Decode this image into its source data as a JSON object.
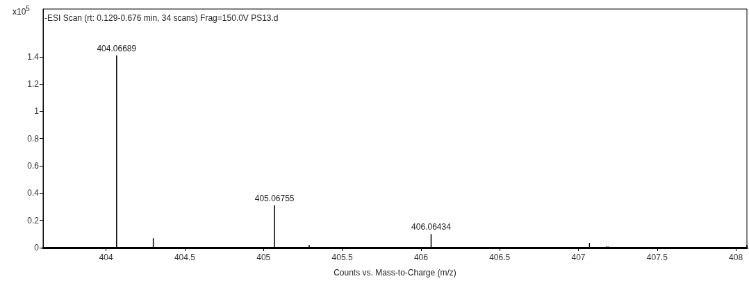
{
  "chart_data": {
    "type": "bar",
    "title": "-ESI Scan (rt: 0.129-0.676 min, 34 scans) Frag=150.0V PS13.d",
    "xlabel": "Counts vs. Mass-to-Charge (m/z)",
    "ylabel": "x10$^{5}$",
    "x": [
      404.06689,
      404.3,
      405.07,
      405.18,
      405.2,
      405.22,
      405.29,
      406.06434,
      406.2,
      406.24,
      406.28,
      406.3,
      407.07,
      407.14,
      407.18,
      407.19,
      407.3,
      408.07
    ],
    "values": [
      1.41,
      0.07,
      0.31,
      0.005,
      0.005,
      0.005,
      0.02,
      0.1,
      0.005,
      0.005,
      0.005,
      0.005,
      0.035,
      0.005,
      0.01,
      0.008,
      0.005,
      0.02
    ],
    "color": "#000000",
    "annotations": [
      {
        "text": "404.06689",
        "x": 404.06689,
        "y": 1.41
      },
      {
        "text": "405.06755",
        "x": 405.07,
        "y": 0.31
      },
      {
        "text": "406.06434",
        "x": 406.06434,
        "y": 0.1
      }
    ],
    "xlim": [
      403.6,
      408.07
    ],
    "xticks": [
      404,
      404.5,
      405,
      405.5,
      406,
      406.5,
      407,
      407.5,
      408
    ],
    "ylim": [
      0,
      1.75
    ],
    "yticks": [
      0,
      0.2,
      0.4,
      0.6,
      0.8,
      1,
      1.2,
      1.4
    ],
    "grid": false
  }
}
